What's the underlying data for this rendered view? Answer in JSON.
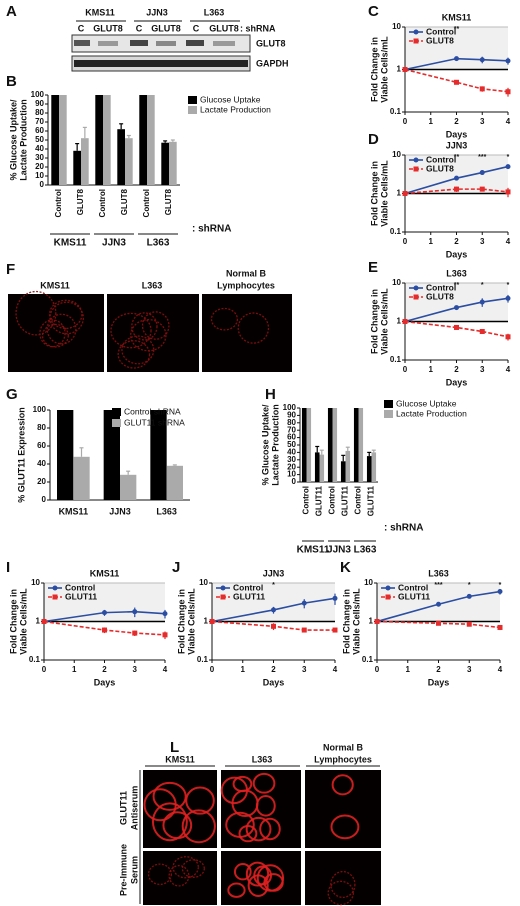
{
  "blot": {
    "label": "A",
    "cell_lines": [
      "KMS11",
      "JJN3",
      "L363"
    ],
    "lanes": [
      "C",
      "GLUT8",
      "C",
      "GLUT8",
      "C",
      "GLUT8"
    ],
    "lane_note": ": shRNA",
    "rows": [
      "GLUT8",
      "GAPDH"
    ]
  },
  "micrographs_f": {
    "label": "F",
    "columns": [
      "KMS11",
      "L363",
      [
        "Normal B",
        "Lymphocytes"
      ]
    ]
  },
  "micrographs_l": {
    "label": "L",
    "columns": [
      "KMS11",
      "L363",
      [
        "Normal B",
        "Lymphocytes"
      ]
    ],
    "rows": [
      [
        "GLUT11",
        "Antiserum"
      ],
      [
        "Pre-Immune",
        "Serum"
      ]
    ]
  },
  "chart_data": [
    {
      "label": "B",
      "type": "bar",
      "y_label": [
        "% Glucose Uptake/",
        "Lactate Production"
      ],
      "categories": [
        "Control",
        "GLUT8",
        "Control",
        "GLUT8",
        "Control",
        "GLUT8"
      ],
      "groups": [
        "KMS11",
        "JJN3",
        "L363"
      ],
      "annotation": ": shRNA",
      "series": [
        {
          "name": "Glucose Uptake",
          "color": "#000000",
          "values": [
            100,
            38,
            100,
            62,
            100,
            47
          ],
          "errors": [
            null,
            8,
            null,
            6,
            null,
            2
          ]
        },
        {
          "name": "Lactate Production",
          "color": "#aaaaaa",
          "values": [
            100,
            52,
            100,
            52,
            100,
            48
          ],
          "errors": [
            null,
            12,
            null,
            3,
            null,
            2
          ]
        }
      ],
      "ylim": [
        0,
        100
      ],
      "yticks": [
        0,
        10,
        20,
        30,
        40,
        50,
        60,
        70,
        80,
        90,
        100
      ],
      "legend": "right"
    },
    {
      "label": "C",
      "type": "line",
      "title": "KMS11",
      "y_label": [
        "Fold  Change in",
        "Viable Cells/mL"
      ],
      "x_label": "Days",
      "x": [
        0,
        2,
        3,
        4
      ],
      "xlim": [
        0,
        4
      ],
      "xticks": [
        0,
        1,
        2,
        3,
        4
      ],
      "ylim": [
        0.1,
        10
      ],
      "yticks": [
        0.1,
        1,
        10
      ],
      "log_y": true,
      "grid": true,
      "reference_line": 1,
      "series": [
        {
          "name": "Control",
          "color": "#2b4ea2",
          "marker": "circle",
          "values": [
            1,
            1.8,
            1.7,
            1.6
          ],
          "errors": [
            0,
            0.2,
            0.3,
            0.3
          ]
        },
        {
          "name": "GLUT8",
          "color": "#e52b2b",
          "marker": "square",
          "dashed": true,
          "values": [
            1,
            0.5,
            0.35,
            0.3
          ],
          "errors": [
            0,
            0.05,
            0.05,
            0.07
          ]
        }
      ],
      "annotations": [
        {
          "text": "**",
          "x": 2
        }
      ]
    },
    {
      "label": "D",
      "type": "line",
      "title": "JJN3",
      "y_label": [
        "Fold  Change in",
        "Viable Cells/mL"
      ],
      "x_label": "Days",
      "x": [
        0,
        2,
        3,
        4
      ],
      "xlim": [
        0,
        4
      ],
      "xticks": [
        0,
        1,
        2,
        3,
        4
      ],
      "ylim": [
        0.1,
        10
      ],
      "yticks": [
        0.1,
        1,
        10
      ],
      "log_y": true,
      "grid": true,
      "reference_line": 1,
      "series": [
        {
          "name": "Control",
          "color": "#2b4ea2",
          "marker": "circle",
          "values": [
            1,
            2.5,
            3.5,
            5
          ],
          "errors": [
            0,
            0.2,
            0.3,
            0.4
          ]
        },
        {
          "name": "GLUT8",
          "color": "#e52b2b",
          "marker": "square",
          "dashed": true,
          "values": [
            1,
            1.3,
            1.3,
            1.1
          ],
          "errors": [
            0,
            0.2,
            0.15,
            0.3
          ]
        }
      ],
      "annotations": [
        {
          "text": "**",
          "x": 2
        },
        {
          "text": "***",
          "x": 3
        },
        {
          "text": "*",
          "x": 4
        }
      ]
    },
    {
      "label": "E",
      "type": "line",
      "title": "L363",
      "y_label": [
        "Fold  Change in",
        "Viable Cells/mL"
      ],
      "x_label": "Days",
      "x": [
        0,
        2,
        3,
        4
      ],
      "xlim": [
        0,
        4
      ],
      "xticks": [
        0,
        1,
        2,
        3,
        4
      ],
      "ylim": [
        0.1,
        10
      ],
      "yticks": [
        0.1,
        1,
        10
      ],
      "log_y": true,
      "grid": true,
      "reference_line": 1,
      "series": [
        {
          "name": "Control",
          "color": "#2b4ea2",
          "marker": "circle",
          "values": [
            1,
            2.3,
            3.2,
            4
          ],
          "errors": [
            0,
            0.3,
            0.8,
            0.9
          ]
        },
        {
          "name": "GLUT8",
          "color": "#e52b2b",
          "marker": "square",
          "dashed": true,
          "values": [
            1,
            0.7,
            0.55,
            0.4
          ],
          "errors": [
            0,
            0.04,
            0.04,
            0.08
          ]
        }
      ],
      "annotations": [
        {
          "text": "**",
          "x": 2
        },
        {
          "text": "*",
          "x": 3
        },
        {
          "text": "*",
          "x": 4
        }
      ]
    },
    {
      "label": "G",
      "type": "bar",
      "y_label": [
        "% GLUT11 Expression"
      ],
      "categories": [
        "KMS11",
        "JJN3",
        "L363"
      ],
      "series": [
        {
          "name": "Control shRNA",
          "color": "#000000",
          "values": [
            100,
            100,
            100
          ],
          "errors": [
            null,
            null,
            null
          ]
        },
        {
          "name": "GLUT11 shRNA",
          "color": "#aaaaaa",
          "values": [
            48,
            28,
            38
          ],
          "errors": [
            10,
            4,
            1
          ]
        }
      ],
      "ylim": [
        0,
        100
      ],
      "yticks": [
        0,
        20,
        40,
        60,
        80,
        100
      ],
      "legend": "top-right"
    },
    {
      "label": "H",
      "type": "bar",
      "y_label": [
        "% Glucose Uptake/",
        "Lactate Production"
      ],
      "categories": [
        "Control",
        "GLUT11",
        "Control",
        "GLUT11",
        "Control",
        "GLUT11"
      ],
      "groups": [
        "KMS11",
        "JJN3",
        "L363"
      ],
      "annotation": ": shRNA",
      "series": [
        {
          "name": "Glucose Uptake",
          "color": "#000000",
          "values": [
            100,
            40,
            100,
            28,
            100,
            35
          ],
          "errors": [
            null,
            8,
            null,
            8,
            null,
            5
          ]
        },
        {
          "name": "Lactate Production",
          "color": "#aaaaaa",
          "values": [
            100,
            37,
            100,
            42,
            100,
            40
          ],
          "errors": [
            null,
            6,
            null,
            5,
            null,
            3
          ]
        }
      ],
      "ylim": [
        0,
        100
      ],
      "yticks": [
        0,
        10,
        20,
        30,
        40,
        50,
        60,
        70,
        80,
        90,
        100
      ],
      "legend": "right"
    },
    {
      "label": "I",
      "type": "line",
      "title": "KMS11",
      "y_label": [
        "Fold  Change in",
        "Viable Cells/mL"
      ],
      "x_label": "Days",
      "x": [
        0,
        2,
        3,
        4
      ],
      "xlim": [
        0,
        4
      ],
      "xticks": [
        0,
        1,
        2,
        3,
        4
      ],
      "ylim": [
        0.1,
        10
      ],
      "yticks": [
        0.1,
        1,
        10
      ],
      "log_y": true,
      "grid": true,
      "reference_line": 1,
      "series": [
        {
          "name": "Control",
          "color": "#2b4ea2",
          "marker": "circle",
          "values": [
            1,
            1.7,
            1.8,
            1.6
          ],
          "errors": [
            0,
            0.3,
            0.5,
            0.4
          ]
        },
        {
          "name": "GLUT11",
          "color": "#e52b2b",
          "marker": "square",
          "dashed": true,
          "values": [
            1,
            0.6,
            0.5,
            0.45
          ],
          "errors": [
            0,
            0.1,
            0.08,
            0.1
          ]
        }
      ],
      "annotations": []
    },
    {
      "label": "J",
      "type": "line",
      "title": "JJN3",
      "y_label": [
        "Fold  Change in",
        "Viable Cells/mL"
      ],
      "x_label": "Days",
      "x": [
        0,
        2,
        3,
        4
      ],
      "xlim": [
        0,
        4
      ],
      "xticks": [
        0,
        1,
        2,
        3,
        4
      ],
      "ylim": [
        0.1,
        10
      ],
      "yticks": [
        0.1,
        1,
        10
      ],
      "log_y": true,
      "grid": true,
      "reference_line": 1,
      "series": [
        {
          "name": "Control",
          "color": "#2b4ea2",
          "marker": "circle",
          "values": [
            1,
            2,
            3,
            4
          ],
          "errors": [
            0,
            0.4,
            0.8,
            1.3
          ]
        },
        {
          "name": "GLUT11",
          "color": "#e52b2b",
          "marker": "square",
          "dashed": true,
          "values": [
            1,
            0.75,
            0.6,
            0.6
          ],
          "errors": [
            0,
            0.15,
            0.05,
            0.08
          ]
        }
      ],
      "annotations": [
        {
          "text": "*",
          "x": 2
        }
      ]
    },
    {
      "label": "K",
      "type": "line",
      "title": "L363",
      "y_label": [
        "Fold  Change in",
        "Viable Cells/mL"
      ],
      "x_label": "Days",
      "x": [
        0,
        2,
        3,
        4
      ],
      "xlim": [
        0,
        4
      ],
      "xticks": [
        0,
        1,
        2,
        3,
        4
      ],
      "ylim": [
        0.1,
        10
      ],
      "yticks": [
        0.1,
        1,
        10
      ],
      "log_y": true,
      "grid": true,
      "reference_line": 1,
      "series": [
        {
          "name": "Control",
          "color": "#2b4ea2",
          "marker": "circle",
          "values": [
            1,
            2.8,
            4.5,
            6
          ],
          "errors": [
            0,
            0.2,
            0.5,
            1
          ]
        },
        {
          "name": "GLUT11",
          "color": "#e52b2b",
          "marker": "square",
          "dashed": true,
          "values": [
            1,
            0.9,
            0.85,
            0.7
          ],
          "errors": [
            0,
            0.05,
            0.05,
            0.1
          ]
        }
      ],
      "annotations": [
        {
          "text": "***",
          "x": 2
        },
        {
          "text": "*",
          "x": 3
        },
        {
          "text": "*",
          "x": 4
        }
      ]
    }
  ]
}
